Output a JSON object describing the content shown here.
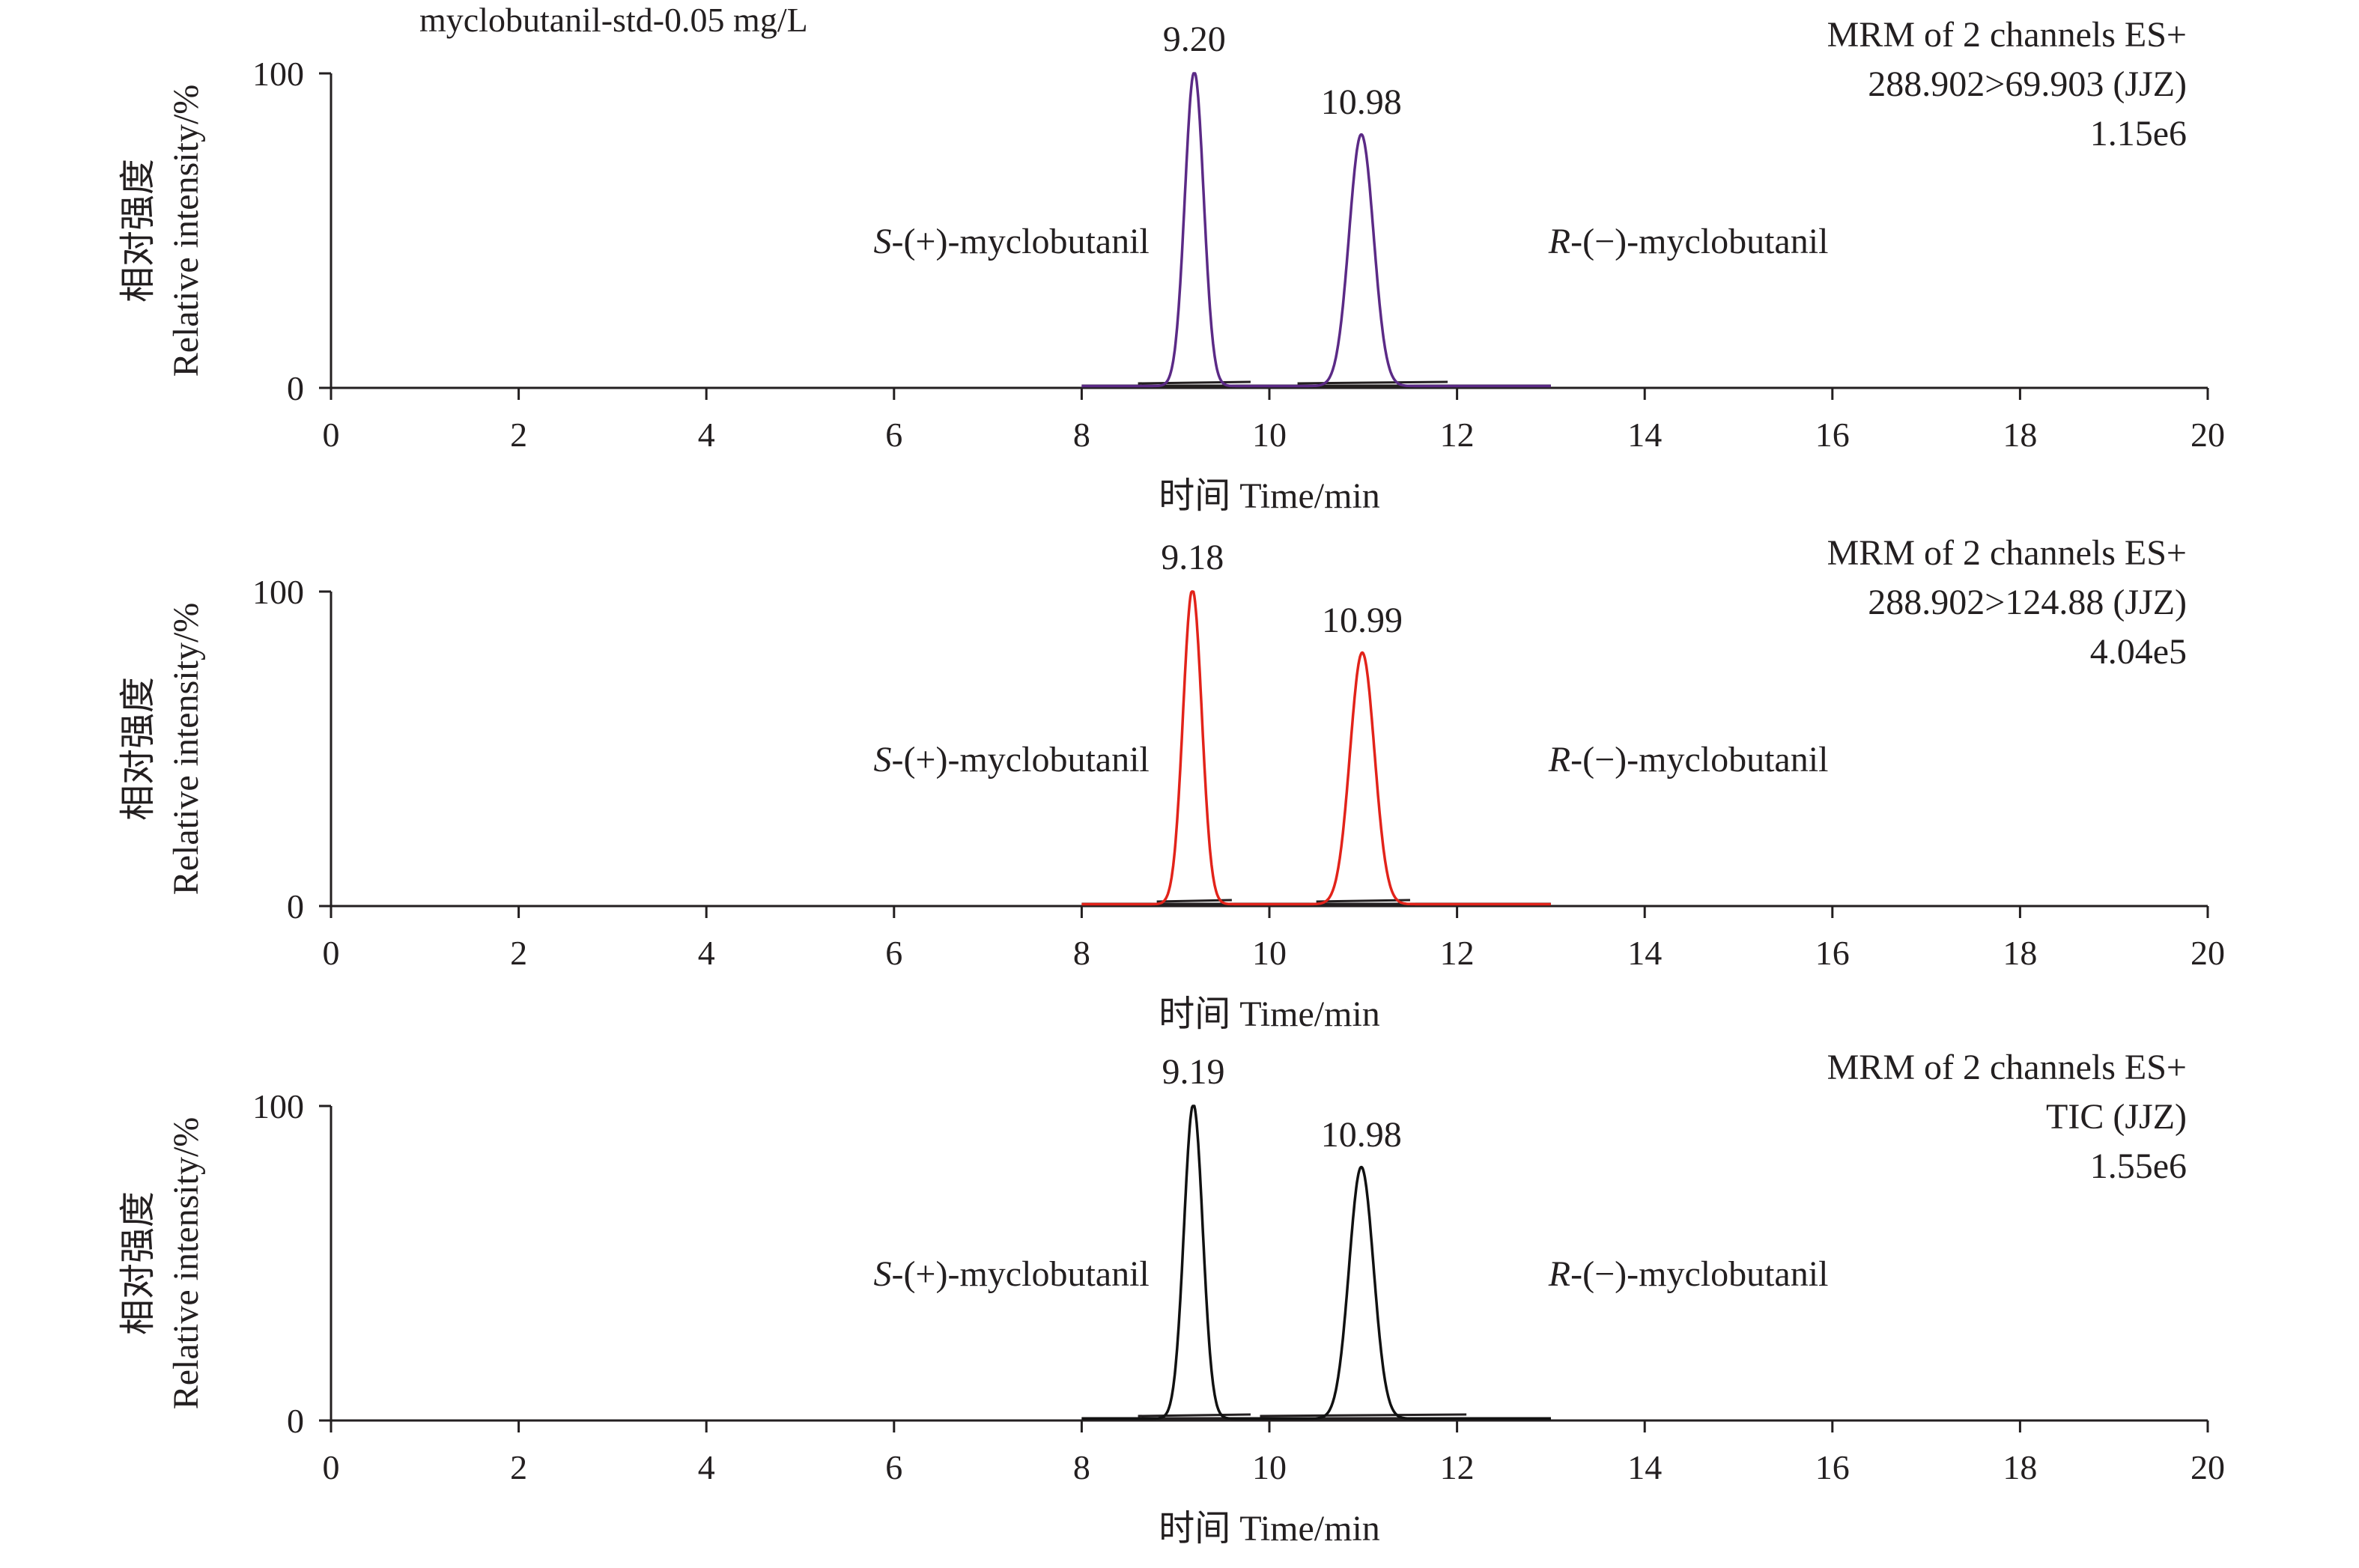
{
  "sample_label": "myclobutanil-std-0.05 mg/L",
  "chart_data": [
    {
      "type": "line",
      "name": "MRM 288.902>69.903",
      "xlabel": "时间 Time/min",
      "ylabel_cn": "相对强度",
      "ylabel": "Relative intensity/%",
      "xlim": [
        0,
        20
      ],
      "ylim": [
        0,
        100
      ],
      "xticks": [
        0,
        2,
        4,
        6,
        8,
        10,
        12,
        14,
        16,
        18,
        20
      ],
      "yticks": [
        0,
        100
      ],
      "info_lines": [
        "MRM of 2 channels ES+",
        "288.902>69.903 (JJZ)",
        "1.15e6"
      ],
      "color": "#5b2a86",
      "trace_range": [
        8.0,
        13.0
      ],
      "baseline_range": [
        8.0,
        13.0
      ],
      "peaks": [
        {
          "x": 9.2,
          "y": 100,
          "label": "9.20",
          "integration": [
            8.6,
            9.8
          ]
        },
        {
          "x": 10.98,
          "y": 80,
          "label": "10.98",
          "integration": [
            10.3,
            11.9
          ]
        }
      ],
      "annotations": [
        {
          "italic": "S",
          "text": "-(+)-myclobutanil"
        },
        {
          "italic": "R",
          "text": "-(−)-myclobutanil"
        }
      ]
    },
    {
      "type": "line",
      "name": "MRM 288.902>124.88",
      "xlabel": "时间 Time/min",
      "ylabel_cn": "相对强度",
      "ylabel": "Relative intensity/%",
      "xlim": [
        0,
        20
      ],
      "ylim": [
        0,
        100
      ],
      "xticks": [
        0,
        2,
        4,
        6,
        8,
        10,
        12,
        14,
        16,
        18,
        20
      ],
      "yticks": [
        0,
        100
      ],
      "info_lines": [
        "MRM of 2 channels ES+",
        "288.902>124.88 (JJZ)",
        "4.04e5"
      ],
      "color": "#e2231a",
      "trace_range": [
        8.0,
        13.0
      ],
      "baseline_range": [
        8.0,
        13.0
      ],
      "peaks": [
        {
          "x": 9.18,
          "y": 100,
          "label": "9.18",
          "integration": [
            8.8,
            9.6
          ]
        },
        {
          "x": 10.99,
          "y": 80,
          "label": "10.99",
          "integration": [
            10.5,
            11.5
          ]
        }
      ],
      "annotations": [
        {
          "italic": "S",
          "text": "-(+)-myclobutanil"
        },
        {
          "italic": "R",
          "text": "-(−)-myclobutanil"
        }
      ]
    },
    {
      "type": "line",
      "name": "MRM TIC",
      "xlabel": "时间 Time/min",
      "ylabel_cn": "相对强度",
      "ylabel": "Relative intensity/%",
      "xlim": [
        0,
        20
      ],
      "ylim": [
        0,
        100
      ],
      "xticks": [
        0,
        2,
        4,
        6,
        8,
        10,
        12,
        14,
        16,
        18,
        20
      ],
      "yticks": [
        0,
        100
      ],
      "info_lines": [
        "MRM of 2 channels ES+",
        "TIC (JJZ)",
        "1.55e6"
      ],
      "color": "#111111",
      "trace_range": [
        8.0,
        13.0
      ],
      "baseline_range": [
        8.0,
        13.0
      ],
      "peaks": [
        {
          "x": 9.19,
          "y": 100,
          "label": "9.19",
          "integration": [
            8.6,
            9.8
          ]
        },
        {
          "x": 10.98,
          "y": 80,
          "label": "10.98",
          "integration": [
            9.9,
            12.1
          ]
        }
      ],
      "annotations": [
        {
          "italic": "S",
          "text": "-(+)-myclobutanil"
        },
        {
          "italic": "R",
          "text": "-(−)-myclobutanil"
        }
      ]
    }
  ]
}
